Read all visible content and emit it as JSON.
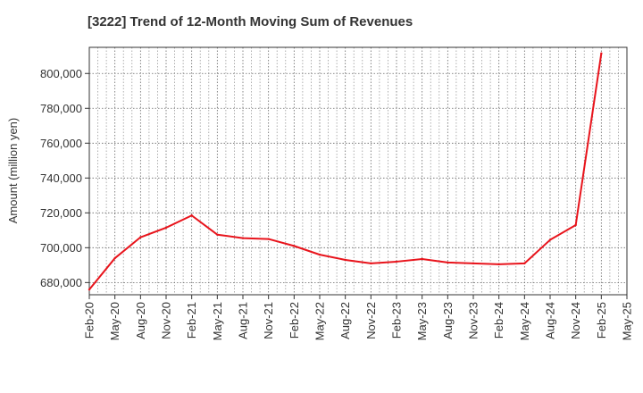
{
  "chart_data": {
    "type": "line",
    "title": "[3222]  Trend of 12-Month Moving Sum of Revenues",
    "xlabel": "",
    "ylabel": "Amount (million yen)",
    "ylim": [
      673000,
      815000
    ],
    "yticks": [
      680000,
      700000,
      720000,
      740000,
      760000,
      780000,
      800000
    ],
    "ytick_labels": [
      "680,000",
      "700,000",
      "720,000",
      "740,000",
      "760,000",
      "780,000",
      "800,000"
    ],
    "x_tick_labels": [
      "Feb-20",
      "May-20",
      "Aug-20",
      "Nov-20",
      "Feb-21",
      "May-21",
      "Aug-21",
      "Nov-21",
      "Feb-22",
      "May-22",
      "Aug-22",
      "Nov-22",
      "Feb-23",
      "May-23",
      "Aug-23",
      "Nov-23",
      "Feb-24",
      "May-24",
      "Aug-24",
      "Nov-24",
      "Feb-25",
      "May-25"
    ],
    "grid": true,
    "series": [
      {
        "color": "#e8141c",
        "x": [
          "Feb-20",
          "May-20",
          "Aug-20",
          "Nov-20",
          "Feb-21",
          "May-21",
          "Aug-21",
          "Nov-21",
          "Feb-22",
          "May-22",
          "Aug-22",
          "Nov-22",
          "Feb-23",
          "May-23",
          "Aug-23",
          "Nov-23",
          "Feb-24",
          "May-24",
          "Aug-24",
          "Nov-24",
          "Feb-25"
        ],
        "values": [
          676000,
          694000,
          706000,
          711500,
          718500,
          707500,
          705500,
          705000,
          701000,
          696000,
          693000,
          691000,
          692000,
          693500,
          691500,
          691000,
          690500,
          691000,
          704500,
          713000,
          811500
        ]
      }
    ]
  }
}
